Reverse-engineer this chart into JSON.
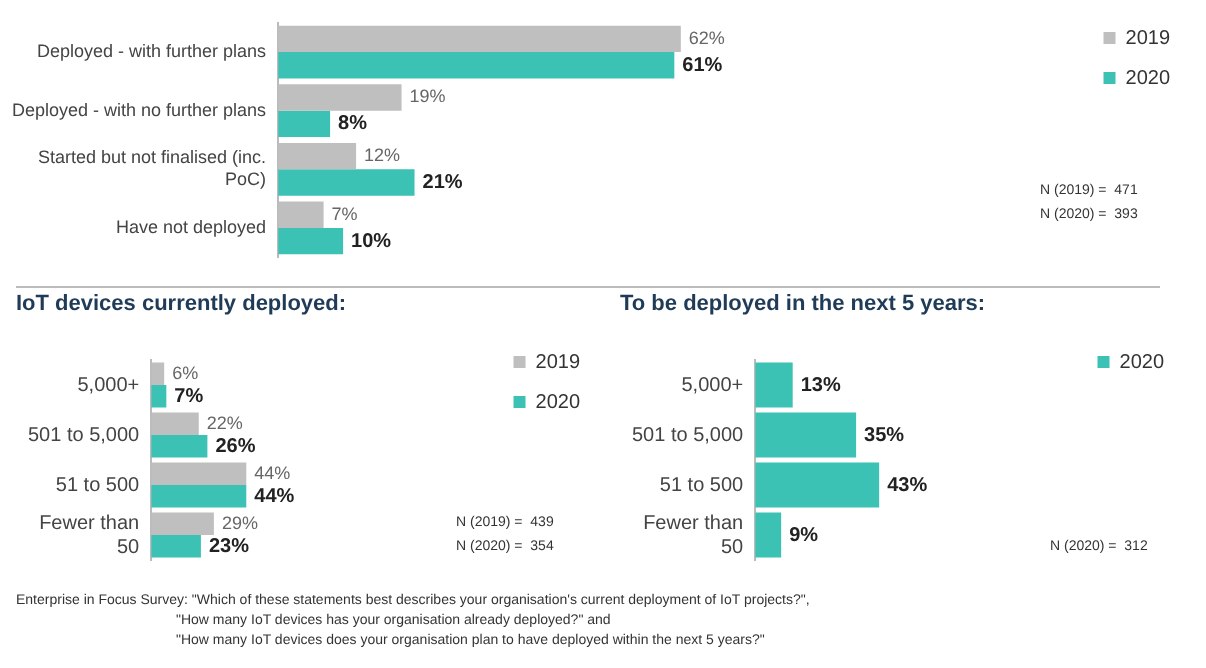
{
  "chart_data": [
    {
      "type": "bar",
      "orientation": "horizontal",
      "categories": [
        "Deployed - with further plans",
        "Deployed - with no further plans",
        "Started but not finalised (inc. PoC)",
        "Have not deployed"
      ],
      "series": [
        {
          "name": "2019",
          "color": "#bfbfbf",
          "values": [
            62,
            19,
            12,
            7
          ],
          "value_labels": [
            "62%",
            "19%",
            "12%",
            "7%"
          ]
        },
        {
          "name": "2020",
          "color": "#3cc1b5",
          "values": [
            61,
            8,
            21,
            10
          ],
          "value_labels": [
            "61%",
            "8%",
            "21%",
            "10%"
          ]
        }
      ],
      "legend": "top right",
      "tick_labels": "y",
      "annotations": [
        "N (2019) =  471",
        "N (2020) =  393",
        "Enterprise in Focus Survey: \"Which of these statements best describes your organisation's current deployment of IoT projects?\",",
        "\"How many IoT devices has your organisation already deployed?\" and",
        "\"How many IoT devices does your organisation plan to have deployed within the next 5 years?\""
      ]
    },
    {
      "type": "bar",
      "orientation": "horizontal",
      "title": "IoT devices currently deployed:",
      "categories": [
        "5,000+",
        "501 to 5,000",
        "51 to 500",
        "Fewer than 50"
      ],
      "series": [
        {
          "name": "2019",
          "color": "#bfbfbf",
          "values": [
            6,
            22,
            44,
            29
          ],
          "value_labels": [
            "6%",
            "22%",
            "44%",
            "29%"
          ]
        },
        {
          "name": "2020",
          "color": "#3cc1b5",
          "values": [
            7,
            26,
            44,
            23
          ],
          "value_labels": [
            "7%",
            "26%",
            "44%",
            "23%"
          ]
        }
      ],
      "legend": "top right",
      "tick_labels": "y",
      "annotations": [
        "N (2019) =  439",
        "N (2020) =  354"
      ]
    },
    {
      "type": "bar",
      "orientation": "horizontal",
      "title": "To be deployed in the next 5 years:",
      "categories": [
        "5,000+",
        "501 to 5,000",
        "51 to 500",
        "Fewer than 50"
      ],
      "series": [
        {
          "name": "2020",
          "color": "#3cc1b5",
          "values": [
            13,
            35,
            43,
            9
          ],
          "value_labels": [
            "13%",
            "35%",
            "43%",
            "9%"
          ]
        }
      ],
      "legend": "top right",
      "tick_labels": "y",
      "annotations": [
        "N (2020) =  312"
      ]
    }
  ]
}
